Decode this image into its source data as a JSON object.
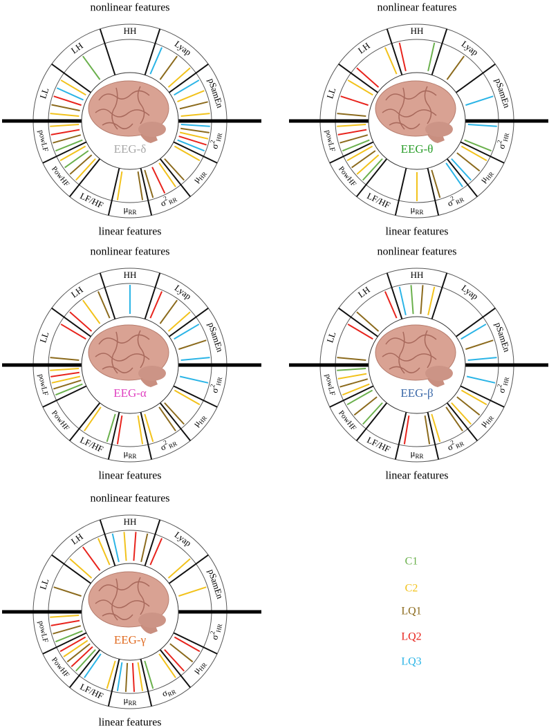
{
  "legend": [
    {
      "name": "C1",
      "color": "#6ab04c"
    },
    {
      "name": "C2",
      "color": "#f2c21b"
    },
    {
      "name": "LQ1",
      "color": "#8b6a1c"
    },
    {
      "name": "LQ2",
      "color": "#e8231c"
    },
    {
      "name": "LQ3",
      "color": "#2ab4e6"
    }
  ],
  "panels": [
    {
      "top": "nonlinear features",
      "bottom": "linear features",
      "label": "EEG-δ",
      "label_color": "#a8a8a8",
      "sectors": [
        {
          "main": "LL",
          "links": [
            "C2",
            "LQ1",
            "LQ2",
            "LQ3",
            "C2"
          ]
        },
        {
          "main": "LH",
          "links": [
            "C1"
          ]
        },
        {
          "main": "HH",
          "links": []
        },
        {
          "main": "Lyap",
          "links": [
            "LQ3",
            "LQ1",
            "C2"
          ]
        },
        {
          "main": "pSamEn",
          "links": [
            "LQ3",
            "C2",
            "LQ1",
            "C2"
          ]
        },
        {
          "main": "σ",
          "sup": "2",
          "sub": "HR",
          "links": [
            "LQ3",
            "LQ1",
            "C2",
            "LQ2",
            "LQ3"
          ]
        },
        {
          "main": "μ",
          "sub": "HR",
          "links": [
            "C2",
            "LQ1"
          ]
        },
        {
          "main": "σ",
          "sup": "2",
          "sub": "RR",
          "links": [
            "C2",
            "LQ2",
            "LQ1"
          ]
        },
        {
          "main": "μ",
          "sub": "RR",
          "links": [
            "LQ1",
            "C2"
          ]
        },
        {
          "main": "LF/HF",
          "links": []
        },
        {
          "main": "PowHF",
          "links": [
            "C2",
            "LQ1",
            "C1",
            "C2"
          ]
        },
        {
          "main": "powLF",
          "links": [
            "C1",
            "LQ1",
            "LQ2",
            "C2"
          ]
        }
      ]
    },
    {
      "top": "nonlinear features",
      "bottom": "linear features",
      "label": "EEG-θ",
      "label_color": "#2a9d2a",
      "sectors": [
        {
          "main": "LL",
          "links": [
            "LQ1",
            "LQ2",
            "C2"
          ]
        },
        {
          "main": "LH",
          "links": [
            "LQ2",
            "C2"
          ]
        },
        {
          "main": "HH",
          "links": [
            "LQ2",
            "C1"
          ]
        },
        {
          "main": "Lyap",
          "links": [
            "LQ1"
          ]
        },
        {
          "main": "pSamEn",
          "links": [
            "LQ3"
          ]
        },
        {
          "main": "σ",
          "sup": "2",
          "sub": "HR",
          "links": [
            "LQ3",
            "C1"
          ]
        },
        {
          "main": "μ",
          "sub": "HR",
          "links": [
            "C2",
            "LQ1",
            "LQ3"
          ]
        },
        {
          "main": "σ",
          "sup": "2",
          "sub": "RR",
          "links": [
            "LQ3",
            "LQ1"
          ]
        },
        {
          "main": "μ",
          "sub": "RR",
          "links": [
            "C2"
          ]
        },
        {
          "main": "LF/HF",
          "links": []
        },
        {
          "main": "PowHF",
          "links": [
            "C1",
            "C2",
            "LQ1",
            "C2"
          ]
        },
        {
          "main": "powLF",
          "links": [
            "C1",
            "LQ1",
            "LQ2",
            "C2"
          ]
        }
      ]
    },
    {
      "top": "nonlinear features",
      "bottom": "linear features",
      "label": "EEG-α",
      "label_color": "#e040c0",
      "sectors": [
        {
          "main": "LL",
          "links": [
            "LQ1",
            "LQ2"
          ]
        },
        {
          "main": "LH",
          "links": [
            "LQ2",
            "C2",
            "LQ1"
          ]
        },
        {
          "main": "HH",
          "links": [
            "LQ3"
          ]
        },
        {
          "main": "Lyap",
          "links": [
            "LQ2",
            "LQ1",
            "C2"
          ]
        },
        {
          "main": "pSamEn",
          "links": [
            "LQ3",
            "LQ1",
            "LQ3"
          ]
        },
        {
          "main": "σ",
          "sup": "2",
          "sub": "HR",
          "links": [
            "LQ3"
          ]
        },
        {
          "main": "μ",
          "sub": "HR",
          "links": [
            "C2",
            "LQ1"
          ]
        },
        {
          "main": "σ",
          "sup": "2",
          "sub": "RR",
          "links": [
            "LQ1",
            "C2"
          ]
        },
        {
          "main": "μ",
          "sub": "RR",
          "links": [
            "C2",
            "LQ2"
          ]
        },
        {
          "main": "LF/HF",
          "links": [
            "C1",
            "C2"
          ]
        },
        {
          "main": "PowHF",
          "links": []
        },
        {
          "main": "powLF",
          "links": [
            "C1",
            "LQ1",
            "C2",
            "LQ2",
            "C2"
          ]
        }
      ]
    },
    {
      "top": "nonlinear features",
      "bottom": "linear features",
      "label": "EEG-β",
      "label_color": "#3a68a8",
      "sectors": [
        {
          "main": "LL",
          "links": [
            "LQ1",
            "LQ2"
          ]
        },
        {
          "main": "LH",
          "links": [
            "LQ1",
            "LQ2"
          ]
        },
        {
          "main": "HH",
          "links": [
            "LQ3",
            "C1",
            "LQ1",
            "C2"
          ]
        },
        {
          "main": "Lyap",
          "links": []
        },
        {
          "main": "pSamEn",
          "links": [
            "LQ3",
            "LQ1",
            "LQ3"
          ]
        },
        {
          "main": "σ",
          "sup": "2",
          "sub": "HR",
          "links": [
            "LQ3"
          ]
        },
        {
          "main": "μ",
          "sub": "HR",
          "links": [
            "C2",
            "LQ1",
            "C2"
          ]
        },
        {
          "main": "σ",
          "sup": "2",
          "sub": "RR",
          "links": [
            "LQ1",
            "C2"
          ]
        },
        {
          "main": "μ",
          "sub": "RR",
          "links": [
            "LQ1",
            "LQ2"
          ]
        },
        {
          "main": "LF/HF",
          "links": []
        },
        {
          "main": "PowHF",
          "links": [
            "C1",
            "LQ1",
            "C1"
          ]
        },
        {
          "main": "powLF",
          "links": [
            "C2",
            "LQ1",
            "C2",
            "C1"
          ]
        }
      ]
    },
    {
      "top": "nonlinear features",
      "bottom": "linear features",
      "label": "EEG-γ",
      "label_color": "#e06a20",
      "sectors": [
        {
          "main": "LL",
          "links": [
            "LQ1"
          ]
        },
        {
          "main": "LH",
          "links": [
            "C2",
            "LQ2",
            "C2"
          ]
        },
        {
          "main": "HH",
          "links": [
            "LQ3",
            "C2",
            "LQ2",
            "LQ1"
          ]
        },
        {
          "main": "Lyap",
          "links": [
            "LQ2",
            "C2"
          ]
        },
        {
          "main": "pSamEn",
          "links": [
            "C2"
          ]
        },
        {
          "main": "σ",
          "sup": "2",
          "sub": "HR",
          "links": []
        },
        {
          "main": "μ",
          "sub": "HR",
          "links": [
            "LQ2",
            "LQ1",
            "LQ2"
          ]
        },
        {
          "main": "σ",
          "sub": "RR",
          "links": [
            "C2",
            "C1"
          ]
        },
        {
          "main": "μ",
          "sub": "RR",
          "links": [
            "C2",
            "LQ2",
            "LQ1",
            "LQ3"
          ]
        },
        {
          "main": "LF/HF",
          "links": [
            "C2",
            "LQ3"
          ]
        },
        {
          "main": "PowHF",
          "links": [
            "C1",
            "LQ2",
            "LQ1",
            "C2",
            "LQ2"
          ]
        },
        {
          "main": "powLF",
          "links": [
            "C1",
            "LQ1",
            "LQ2",
            "C2"
          ]
        }
      ]
    }
  ]
}
